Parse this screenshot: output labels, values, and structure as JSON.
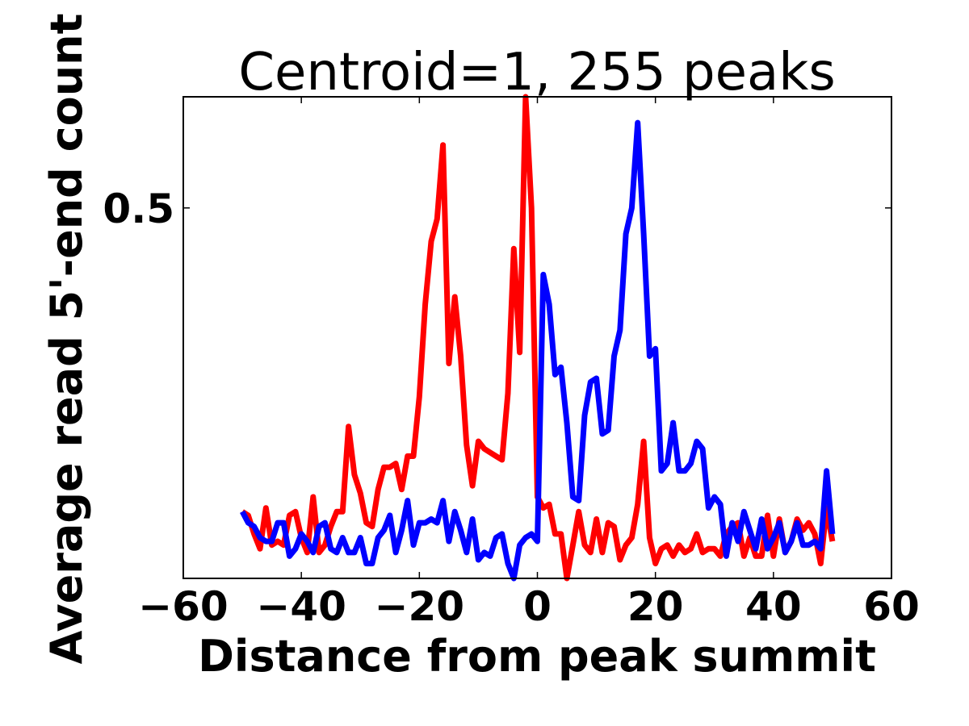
{
  "chart_data": {
    "type": "line",
    "title": "Centroid=1, 255 peaks",
    "xlabel": "Distance from peak summit",
    "ylabel": "Average read 5'-end count",
    "xlim": [
      -60,
      60
    ],
    "ylim": [
      0.0,
      0.65
    ],
    "xticks": [
      -60,
      -40,
      -20,
      0,
      20,
      40,
      60
    ],
    "xtick_labels": [
      "−60",
      "−40",
      "−20",
      "0",
      "20",
      "40",
      "60"
    ],
    "yticks": [
      0.5
    ],
    "ytick_labels": [
      "0.5"
    ],
    "grid": false,
    "legend": "none",
    "x": [
      -50,
      -49,
      -48,
      -47,
      -46,
      -45,
      -44,
      -43,
      -42,
      -41,
      -40,
      -39,
      -38,
      -37,
      -36,
      -35,
      -34,
      -33,
      -32,
      -31,
      -30,
      -29,
      -28,
      -27,
      -26,
      -25,
      -24,
      -23,
      -22,
      -21,
      -20,
      -19,
      -18,
      -17,
      -16,
      -15,
      -14,
      -13,
      -12,
      -11,
      -10,
      -9,
      -8,
      -7,
      -6,
      -5,
      -4,
      -3,
      -2,
      -1,
      0,
      1,
      2,
      3,
      4,
      5,
      6,
      7,
      8,
      9,
      10,
      11,
      12,
      13,
      14,
      15,
      16,
      17,
      18,
      19,
      20,
      21,
      22,
      23,
      24,
      25,
      26,
      27,
      28,
      29,
      30,
      31,
      32,
      33,
      34,
      35,
      36,
      37,
      38,
      39,
      40,
      41,
      42,
      43,
      44,
      45,
      46,
      47,
      48,
      49,
      50
    ],
    "series": [
      {
        "color": "#ff0000",
        "values": [
          0.09,
          0.085,
          0.06,
          0.04,
          0.095,
          0.045,
          0.05,
          0.045,
          0.085,
          0.09,
          0.055,
          0.035,
          0.11,
          0.035,
          0.045,
          0.07,
          0.09,
          0.09,
          0.205,
          0.14,
          0.115,
          0.075,
          0.07,
          0.12,
          0.15,
          0.15,
          0.155,
          0.12,
          0.165,
          0.165,
          0.245,
          0.37,
          0.455,
          0.485,
          0.585,
          0.29,
          0.38,
          0.3,
          0.18,
          0.125,
          0.185,
          0.175,
          0.17,
          0.165,
          0.16,
          0.25,
          0.445,
          0.305,
          0.65,
          0.5,
          0.11,
          0.095,
          0.1,
          0.06,
          0.06,
          0.0,
          0.045,
          0.09,
          0.045,
          0.035,
          0.08,
          0.035,
          0.075,
          0.07,
          0.025,
          0.045,
          0.055,
          0.1,
          0.185,
          0.055,
          0.02,
          0.04,
          0.045,
          0.03,
          0.045,
          0.035,
          0.04,
          0.06,
          0.035,
          0.04,
          0.04,
          0.03,
          0.06,
          0.07,
          0.075,
          0.03,
          0.055,
          0.03,
          0.03,
          0.085,
          0.03,
          0.08,
          0.035,
          0.05,
          0.08,
          0.065,
          0.075,
          0.06,
          0.02,
          0.095,
          0.05
        ]
      },
      {
        "color": "#0000ff",
        "values": [
          0.09,
          0.075,
          0.07,
          0.055,
          0.05,
          0.05,
          0.075,
          0.075,
          0.03,
          0.04,
          0.06,
          0.05,
          0.035,
          0.07,
          0.075,
          0.04,
          0.035,
          0.055,
          0.035,
          0.035,
          0.055,
          0.02,
          0.02,
          0.055,
          0.065,
          0.085,
          0.035,
          0.065,
          0.105,
          0.045,
          0.075,
          0.075,
          0.08,
          0.075,
          0.105,
          0.05,
          0.09,
          0.065,
          0.035,
          0.08,
          0.025,
          0.035,
          0.03,
          0.055,
          0.06,
          0.02,
          0.0,
          0.045,
          0.055,
          0.06,
          0.05,
          0.41,
          0.37,
          0.275,
          0.285,
          0.21,
          0.11,
          0.105,
          0.22,
          0.265,
          0.27,
          0.195,
          0.2,
          0.3,
          0.335,
          0.465,
          0.5,
          0.615,
          0.465,
          0.3,
          0.31,
          0.145,
          0.155,
          0.21,
          0.145,
          0.145,
          0.155,
          0.185,
          0.175,
          0.095,
          0.11,
          0.1,
          0.03,
          0.075,
          0.05,
          0.09,
          0.065,
          0.04,
          0.08,
          0.04,
          0.055,
          0.075,
          0.035,
          0.05,
          0.075,
          0.045,
          0.045,
          0.05,
          0.04,
          0.145,
          0.06
        ]
      }
    ]
  }
}
